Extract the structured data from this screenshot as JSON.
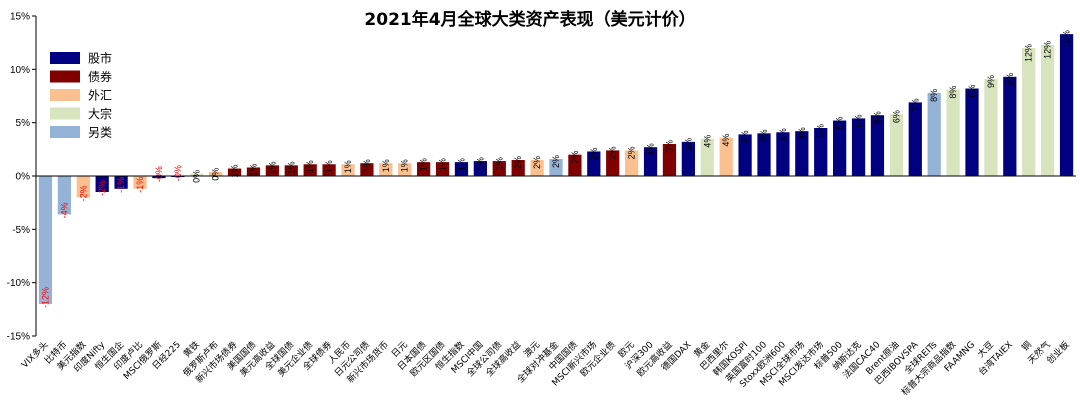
{
  "chart_data": {
    "type": "bar",
    "title": "2021年4月全球大类资产表现（美元计价）",
    "xlabel": "",
    "ylabel": "",
    "ylim": [
      -15,
      15
    ],
    "yticks": [
      "-15%",
      "-10%",
      "-5%",
      "0%",
      "5%",
      "10%",
      "15%"
    ],
    "grid": false,
    "legend_position": "top-left",
    "legend": [
      {
        "key": "equity",
        "label": "股市",
        "color": "#000080"
      },
      {
        "key": "bond",
        "label": "债券",
        "color": "#800000"
      },
      {
        "key": "fx",
        "label": "外汇",
        "color": "#FAC090"
      },
      {
        "key": "commodity",
        "label": "大宗",
        "color": "#D7E4BD"
      },
      {
        "key": "alt",
        "label": "另类",
        "color": "#95B3D7"
      }
    ],
    "negative_label_color": "#FF0000",
    "positive_label_color": "#000000",
    "bars": [
      {
        "category": "VIX多头",
        "value": -12.0,
        "label": "-12%",
        "group": "alt"
      },
      {
        "category": "比特币",
        "value": -3.6,
        "label": "-4%",
        "group": "alt"
      },
      {
        "category": "美元指数",
        "value": -2.0,
        "label": "-2%",
        "group": "fx"
      },
      {
        "category": "印度Nifty",
        "value": -1.5,
        "label": "-2%",
        "group": "equity"
      },
      {
        "category": "恒生国企",
        "value": -1.2,
        "label": "-1%",
        "group": "equity"
      },
      {
        "category": "印度卢比",
        "value": -1.2,
        "label": "-1%",
        "group": "fx"
      },
      {
        "category": "MSCI俄罗斯",
        "value": -0.2,
        "label": "-0%",
        "group": "equity"
      },
      {
        "category": "日经225",
        "value": -0.1,
        "label": "-0%",
        "group": "equity"
      },
      {
        "category": "黄铁",
        "value": 0.2,
        "label": "0%",
        "group": "commodity"
      },
      {
        "category": "俄罗斯卢布",
        "value": 0.4,
        "label": "0%",
        "group": "fx"
      },
      {
        "category": "新兴市场债券",
        "value": 0.7,
        "label": "1%",
        "group": "bond"
      },
      {
        "category": "美国国债",
        "value": 0.8,
        "label": "1%",
        "group": "bond"
      },
      {
        "category": "美元高收益",
        "value": 1.0,
        "label": "1%",
        "group": "bond"
      },
      {
        "category": "全球国债",
        "value": 1.0,
        "label": "1%",
        "group": "bond"
      },
      {
        "category": "美元企业债",
        "value": 1.1,
        "label": "1%",
        "group": "bond"
      },
      {
        "category": "全球债券",
        "value": 1.1,
        "label": "1%",
        "group": "bond"
      },
      {
        "category": "人民币",
        "value": 1.1,
        "label": "1%",
        "group": "fx"
      },
      {
        "category": "日元公司债",
        "value": 1.2,
        "label": "1%",
        "group": "bond"
      },
      {
        "category": "新兴市场货币",
        "value": 1.2,
        "label": "1%",
        "group": "fx"
      },
      {
        "category": "日元",
        "value": 1.2,
        "label": "1%",
        "group": "fx"
      },
      {
        "category": "日本国债",
        "value": 1.3,
        "label": "1%",
        "group": "bond"
      },
      {
        "category": "欧元区国债",
        "value": 1.3,
        "label": "1%",
        "group": "bond"
      },
      {
        "category": "恒生指数",
        "value": 1.3,
        "label": "1%",
        "group": "equity"
      },
      {
        "category": "MSCI中国",
        "value": 1.4,
        "label": "1%",
        "group": "equity"
      },
      {
        "category": "全球公司债",
        "value": 1.4,
        "label": "1%",
        "group": "bond"
      },
      {
        "category": "全球高收益",
        "value": 1.5,
        "label": "2%",
        "group": "bond"
      },
      {
        "category": "澳元",
        "value": 1.5,
        "label": "2%",
        "group": "fx"
      },
      {
        "category": "全球对冲基金",
        "value": 1.6,
        "label": "2%",
        "group": "alt"
      },
      {
        "category": "中国国债",
        "value": 2.0,
        "label": "2%",
        "group": "bond"
      },
      {
        "category": "MSCI新兴市场",
        "value": 2.3,
        "label": "2%",
        "group": "equity"
      },
      {
        "category": "欧元企业债",
        "value": 2.4,
        "label": "2%",
        "group": "bond"
      },
      {
        "category": "欧元",
        "value": 2.4,
        "label": "2%",
        "group": "fx"
      },
      {
        "category": "沪深300",
        "value": 2.7,
        "label": "3%",
        "group": "equity"
      },
      {
        "category": "欧元高收益",
        "value": 3.0,
        "label": "3%",
        "group": "bond"
      },
      {
        "category": "德国DAX",
        "value": 3.2,
        "label": "3%",
        "group": "equity"
      },
      {
        "category": "黄金",
        "value": 3.5,
        "label": "4%",
        "group": "commodity"
      },
      {
        "category": "巴西里尔",
        "value": 3.6,
        "label": "4%",
        "group": "fx"
      },
      {
        "category": "韩国KOSPI",
        "value": 3.9,
        "label": "4%",
        "group": "equity"
      },
      {
        "category": "英国富时100",
        "value": 4.0,
        "label": "4%",
        "group": "equity"
      },
      {
        "category": "Stoxx欧洲600",
        "value": 4.1,
        "label": "4%",
        "group": "equity"
      },
      {
        "category": "MSCI全球市场",
        "value": 4.2,
        "label": "4%",
        "group": "equity"
      },
      {
        "category": "MSCI发达市场",
        "value": 4.5,
        "label": "5%",
        "group": "equity"
      },
      {
        "category": "标普500",
        "value": 5.2,
        "label": "5%",
        "group": "equity"
      },
      {
        "category": "纳斯达克",
        "value": 5.4,
        "label": "5%",
        "group": "equity"
      },
      {
        "category": "法国CAC40",
        "value": 5.7,
        "label": "6%",
        "group": "equity"
      },
      {
        "category": "Brent原油",
        "value": 5.8,
        "label": "6%",
        "group": "commodity"
      },
      {
        "category": "巴西IBOVSPA",
        "value": 6.9,
        "label": "7%",
        "group": "equity"
      },
      {
        "category": "全球REITs",
        "value": 7.8,
        "label": "8%",
        "group": "alt"
      },
      {
        "category": "标普大宗商品指数",
        "value": 8.1,
        "label": "8%",
        "group": "commodity"
      },
      {
        "category": "FAAMNG",
        "value": 8.2,
        "label": "8%",
        "group": "equity"
      },
      {
        "category": "大豆",
        "value": 9.1,
        "label": "9%",
        "group": "commodity"
      },
      {
        "category": "台湾TAIEX",
        "value": 9.3,
        "label": "9%",
        "group": "equity"
      },
      {
        "category": "铜",
        "value": 12.0,
        "label": "12%",
        "group": "commodity"
      },
      {
        "category": "天然气",
        "value": 12.3,
        "label": "12%",
        "group": "commodity"
      },
      {
        "category": "创业板",
        "value": 13.3,
        "label": "13%",
        "group": "equity"
      }
    ]
  }
}
